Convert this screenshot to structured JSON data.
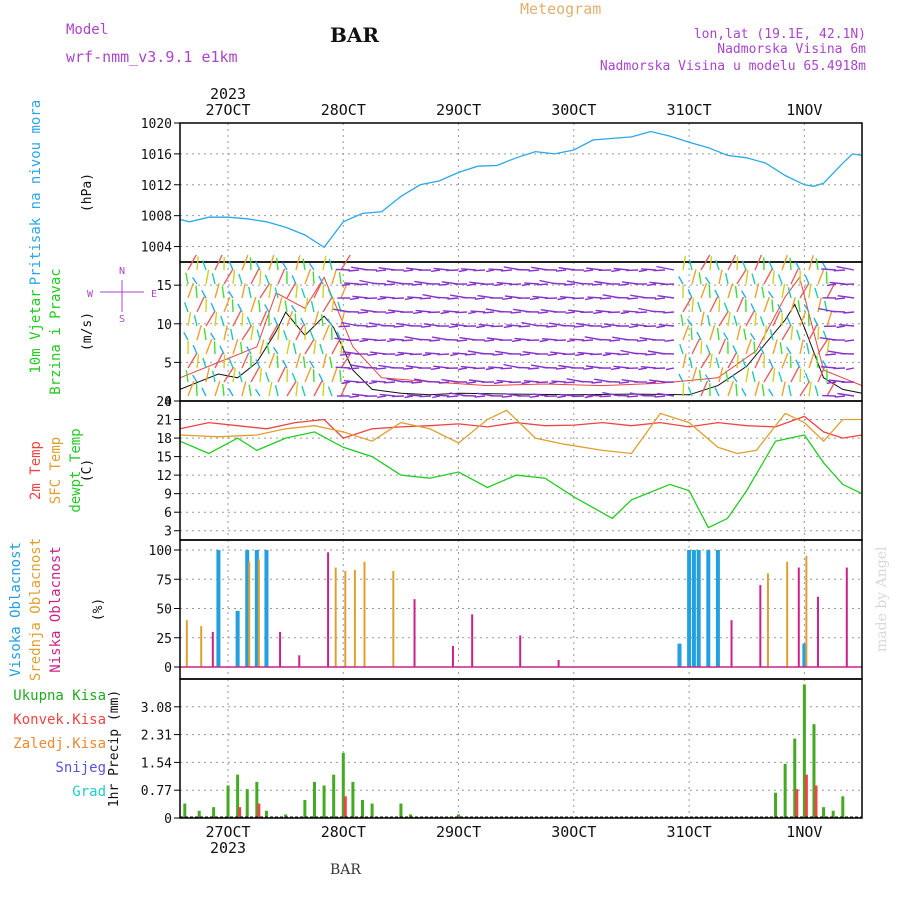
{
  "header": {
    "model_label": "Model",
    "model_name": "wrf-nmm_v3.9.1 e1km",
    "station": "BAR",
    "meteogram": "Meteogram",
    "lonlat": "lon,lat (19.1E, 42.1N)",
    "elevation": "Nadmorska Visina 6m",
    "model_elevation": "Nadmorska Visina u modelu 65.4918m",
    "footer": "BAR",
    "watermark": "made by Angel"
  },
  "colors": {
    "pressure": "#2aa8e8",
    "temp2m": "#ee4444",
    "sfc_temp": "#e0a030",
    "dewpt": "#22cc22",
    "high_cloud": "#22a0e0",
    "mid_cloud": "#e0a030",
    "low_cloud": "#cc2288",
    "total_precip": "#44aa22",
    "conv_precip": "#ee4444",
    "frozen": "#ee8833",
    "snow": "#5555dd",
    "hail": "#22cccc",
    "grid": "#888888",
    "wind_arrow_low": "#8833cc",
    "watermark": "#d8d8d8"
  },
  "chart_data": [
    {
      "type": "line",
      "panel": "pressure",
      "x_range": [
        "2023-10-26T14:00",
        "2023-11-01T12:00"
      ],
      "x_ticks": [
        {
          "label": "27OCT",
          "t": "2023-10-27T00:00"
        },
        {
          "label": "28OCT",
          "t": "2023-10-28T00:00"
        },
        {
          "label": "29OCT",
          "t": "2023-10-29T00:00"
        },
        {
          "label": "30OCT",
          "t": "2023-10-30T00:00"
        },
        {
          "label": "31OCT",
          "t": "2023-10-31T00:00"
        },
        {
          "label": "1NOV",
          "t": "2023-11-01T00:00"
        }
      ],
      "year_label": "2023",
      "ylabel": "(hPa)",
      "side_labels": [
        {
          "text": "Pritisak na nivou mora",
          "color": "#2aa8e8"
        }
      ],
      "ylim": [
        1002,
        1020
      ],
      "yticks": [
        1004,
        1008,
        1012,
        1016,
        1020
      ],
      "grid": true,
      "series": [
        {
          "color": "#2aa8e8",
          "x": [
            "2023-10-26T14:00",
            "2023-10-26T16:00",
            "2023-10-26T20:00",
            "2023-10-27T00:00",
            "2023-10-27T04:00",
            "2023-10-27T08:00",
            "2023-10-27T12:00",
            "2023-10-27T16:00",
            "2023-10-27T20:00",
            "2023-10-28T00:00",
            "2023-10-28T04:00",
            "2023-10-28T08:00",
            "2023-10-28T12:00",
            "2023-10-28T16:00",
            "2023-10-28T20:00",
            "2023-10-29T00:00",
            "2023-10-29T04:00",
            "2023-10-29T08:00",
            "2023-10-29T12:00",
            "2023-10-29T16:00",
            "2023-10-29T20:00",
            "2023-10-30T00:00",
            "2023-10-30T04:00",
            "2023-10-30T08:00",
            "2023-10-30T12:00",
            "2023-10-30T16:00",
            "2023-10-30T20:00",
            "2023-10-31T00:00",
            "2023-10-31T04:00",
            "2023-10-31T08:00",
            "2023-10-31T12:00",
            "2023-10-31T16:00",
            "2023-10-31T20:00",
            "2023-11-01T00:00",
            "2023-11-01T02:00",
            "2023-11-01T04:00",
            "2023-11-01T06:00",
            "2023-11-01T08:00",
            "2023-11-01T10:00",
            "2023-11-01T12:00"
          ],
          "y": [
            1007.5,
            1007.2,
            1007.8,
            1007.8,
            1007.6,
            1007.2,
            1006.5,
            1005.5,
            1003.9,
            1007.2,
            1008.3,
            1008.5,
            1010.5,
            1012.0,
            1012.5,
            1013.6,
            1014.4,
            1014.5,
            1015.5,
            1016.3,
            1016.0,
            1016.5,
            1017.8,
            1018.0,
            1018.2,
            1018.9,
            1018.3,
            1017.5,
            1016.8,
            1015.8,
            1015.5,
            1014.8,
            1013.2,
            1012.0,
            1011.8,
            1012.2,
            1013.5,
            1014.8,
            1016.0,
            1015.8
          ]
        }
      ]
    },
    {
      "type": "line",
      "panel": "wind",
      "ylabel": "(m/s)",
      "side_labels": [
        {
          "text": "10m Vjetar",
          "color": "#22cc22"
        },
        {
          "text": "Brzina i Pravac",
          "color": "#22cc22"
        }
      ],
      "compass": {
        "n": "N",
        "s": "S",
        "e": "E",
        "w": "W"
      },
      "ylim": [
        0,
        18
      ],
      "yticks": [
        0,
        5,
        10,
        15
      ],
      "grid": true,
      "series": [
        {
          "name": "speed",
          "color": "#111111",
          "x": [
            "2023-10-26T14:00",
            "2023-10-26T18:00",
            "2023-10-26T22:00",
            "2023-10-27T02:00",
            "2023-10-27T06:00",
            "2023-10-27T10:00",
            "2023-10-27T12:00",
            "2023-10-27T16:00",
            "2023-10-27T20:00",
            "2023-10-27T22:00",
            "2023-10-28T02:00",
            "2023-10-28T06:00",
            "2023-10-28T12:00",
            "2023-10-28T18:00",
            "2023-10-29T00:00",
            "2023-10-29T12:00",
            "2023-10-30T00:00",
            "2023-10-30T12:00",
            "2023-10-31T00:00",
            "2023-10-31T06:00",
            "2023-10-31T12:00",
            "2023-10-31T16:00",
            "2023-10-31T20:00",
            "2023-10-31T22:00",
            "2023-11-01T00:00",
            "2023-11-01T04:00",
            "2023-11-01T08:00",
            "2023-11-01T12:00"
          ],
          "y": [
            1.5,
            2.5,
            3.5,
            3.0,
            5.0,
            9.0,
            11.5,
            8.5,
            11.0,
            9.5,
            4.0,
            1.5,
            1.0,
            0.8,
            1.0,
            0.9,
            0.8,
            0.9,
            0.8,
            2.0,
            4.5,
            7.5,
            10.5,
            12.5,
            9.5,
            3.0,
            1.5,
            1.0
          ]
        },
        {
          "name": "gust",
          "color": "#ee4444",
          "x": [
            "2023-10-26T14:00",
            "2023-10-26T22:00",
            "2023-10-27T06:00",
            "2023-10-27T10:00",
            "2023-10-27T16:00",
            "2023-10-27T20:00",
            "2023-10-28T02:00",
            "2023-10-28T08:00",
            "2023-10-28T18:00",
            "2023-10-29T06:00",
            "2023-10-29T18:00",
            "2023-10-30T06:00",
            "2023-10-30T18:00",
            "2023-10-31T06:00",
            "2023-10-31T14:00",
            "2023-10-31T20:00",
            "2023-10-31T23:00",
            "2023-11-01T04:00",
            "2023-11-01T12:00"
          ],
          "y": [
            3,
            5,
            7,
            14,
            12,
            16,
            7,
            3,
            2.5,
            2.0,
            2.2,
            2.0,
            2.3,
            3.0,
            6.5,
            13.5,
            16,
            4,
            2
          ]
        }
      ]
    },
    {
      "type": "line",
      "panel": "temperature",
      "ylabel": "(C)",
      "side_labels": [
        {
          "text": "2m Temp",
          "color": "#ee4444"
        },
        {
          "text": "SFC Temp",
          "color": "#e0a030"
        },
        {
          "text": "dewpt Temp",
          "color": "#22cc22"
        }
      ],
      "ylim": [
        1.5,
        24
      ],
      "yticks": [
        3,
        6,
        9,
        12,
        15,
        18,
        21,
        24
      ],
      "grid": true,
      "series": [
        {
          "color": "#ee4444",
          "x": [
            "2023-10-26T14:00",
            "2023-10-26T20:00",
            "2023-10-27T02:00",
            "2023-10-27T08:00",
            "2023-10-27T14:00",
            "2023-10-27T20:00",
            "2023-10-28T00:00",
            "2023-10-28T06:00",
            "2023-10-28T12:00",
            "2023-10-28T18:00",
            "2023-10-29T00:00",
            "2023-10-29T06:00",
            "2023-10-29T12:00",
            "2023-10-29T18:00",
            "2023-10-30T00:00",
            "2023-10-30T06:00",
            "2023-10-30T12:00",
            "2023-10-30T18:00",
            "2023-10-31T00:00",
            "2023-10-31T06:00",
            "2023-10-31T12:00",
            "2023-10-31T18:00",
            "2023-11-01T00:00",
            "2023-11-01T04:00",
            "2023-11-01T08:00",
            "2023-11-01T12:00"
          ],
          "y": [
            19.5,
            20.5,
            20.0,
            19.5,
            20.5,
            21.0,
            18.0,
            19.5,
            19.8,
            20.0,
            20.3,
            19.8,
            20.5,
            20.0,
            20.1,
            20.5,
            20.0,
            20.5,
            19.8,
            20.5,
            20.0,
            19.8,
            21.5,
            19.0,
            18.0,
            18.5
          ]
        },
        {
          "color": "#e0a030",
          "x": [
            "2023-10-26T14:00",
            "2023-10-26T22:00",
            "2023-10-27T06:00",
            "2023-10-27T12:00",
            "2023-10-27T18:00",
            "2023-10-28T00:00",
            "2023-10-28T06:00",
            "2023-10-28T12:00",
            "2023-10-28T18:00",
            "2023-10-29T00:00",
            "2023-10-29T06:00",
            "2023-10-29T10:00",
            "2023-10-29T16:00",
            "2023-10-29T22:00",
            "2023-10-30T06:00",
            "2023-10-30T12:00",
            "2023-10-30T18:00",
            "2023-10-31T00:00",
            "2023-10-31T06:00",
            "2023-10-31T10:00",
            "2023-10-31T14:00",
            "2023-10-31T20:00",
            "2023-11-01T00:00",
            "2023-11-01T04:00",
            "2023-11-01T08:00",
            "2023-11-01T12:00"
          ],
          "y": [
            18.5,
            18.2,
            18.5,
            19.5,
            20.0,
            19.0,
            17.5,
            20.5,
            19.5,
            17.2,
            21.0,
            22.5,
            18.0,
            17.0,
            16.0,
            15.5,
            22.0,
            20.5,
            16.5,
            15.5,
            16.0,
            22.0,
            20.5,
            17.5,
            21.0,
            21.0
          ]
        },
        {
          "color": "#22cc22",
          "x": [
            "2023-10-26T14:00",
            "2023-10-26T20:00",
            "2023-10-27T02:00",
            "2023-10-27T06:00",
            "2023-10-27T12:00",
            "2023-10-27T18:00",
            "2023-10-28T00:00",
            "2023-10-28T06:00",
            "2023-10-28T12:00",
            "2023-10-28T18:00",
            "2023-10-29T00:00",
            "2023-10-29T06:00",
            "2023-10-29T12:00",
            "2023-10-29T18:00",
            "2023-10-30T00:00",
            "2023-10-30T08:00",
            "2023-10-30T12:00",
            "2023-10-30T20:00",
            "2023-10-31T00:00",
            "2023-10-31T04:00",
            "2023-10-31T08:00",
            "2023-10-31T12:00",
            "2023-10-31T18:00",
            "2023-11-01T00:00",
            "2023-11-01T04:00",
            "2023-11-01T08:00",
            "2023-11-01T12:00"
          ],
          "y": [
            17.5,
            15.5,
            18.0,
            16.0,
            18.0,
            19.0,
            16.5,
            15.0,
            12.0,
            11.5,
            12.5,
            10.0,
            12.0,
            11.5,
            8.5,
            5.0,
            8.0,
            10.5,
            9.5,
            3.5,
            5.0,
            9.5,
            17.5,
            18.5,
            14.0,
            10.5,
            9.0
          ]
        }
      ]
    },
    {
      "type": "bar",
      "panel": "cloud",
      "ylabel": "(%)",
      "side_labels": [
        {
          "text": "Visoka Oblacnost",
          "color": "#22a0e0"
        },
        {
          "text": "Srednja Oblacnost",
          "color": "#e0a030"
        },
        {
          "text": "Niska Oblacnost",
          "color": "#cc2288"
        }
      ],
      "ylim": [
        0,
        100
      ],
      "yticks": [
        0,
        25,
        50,
        75,
        100
      ],
      "grid": true,
      "series": [
        {
          "name": "high",
          "color": "#22a0e0",
          "x": [
            "2023-10-26T22:00",
            "2023-10-27T02:00",
            "2023-10-27T04:00",
            "2023-10-27T06:00",
            "2023-10-27T08:00",
            "2023-10-30T22:00",
            "2023-10-31T00:00",
            "2023-10-31T01:00",
            "2023-10-31T02:00",
            "2023-10-31T04:00",
            "2023-10-31T06:00",
            "2023-11-01T00:00"
          ],
          "y": [
            100,
            48,
            100,
            100,
            100,
            20,
            100,
            100,
            100,
            100,
            100,
            20
          ]
        },
        {
          "name": "mid",
          "color": "#e0a030",
          "x": [
            "2023-10-26T15:00",
            "2023-10-26T18:00",
            "2023-10-27T04:00",
            "2023-10-27T06:00",
            "2023-10-27T22:00",
            "2023-10-28T00:00",
            "2023-10-28T02:00",
            "2023-10-28T04:00",
            "2023-10-28T10:00",
            "2023-10-31T16:00",
            "2023-10-31T20:00",
            "2023-11-01T00:00"
          ],
          "y": [
            40,
            35,
            90,
            92,
            85,
            82,
            83,
            90,
            82,
            80,
            90,
            95
          ]
        },
        {
          "name": "low",
          "color": "#cc2288",
          "x": [
            "2023-10-26T20:00",
            "2023-10-27T10:00",
            "2023-10-27T14:00",
            "2023-10-27T20:00",
            "2023-10-28T14:00",
            "2023-10-28T22:00",
            "2023-10-29T02:00",
            "2023-10-29T12:00",
            "2023-10-29T20:00",
            "2023-10-31T08:00",
            "2023-10-31T14:00",
            "2023-10-31T22:00",
            "2023-11-01T02:00",
            "2023-11-01T08:00"
          ],
          "y": [
            30,
            30,
            10,
            98,
            58,
            18,
            45,
            27,
            6,
            40,
            70,
            85,
            60,
            85
          ]
        }
      ]
    },
    {
      "type": "bar",
      "panel": "precip",
      "ylabel": "1hr Precip (mm)",
      "legend": [
        {
          "text": "Ukupna Kisa",
          "color": "#22aa22"
        },
        {
          "text": "Konvek.Kisa",
          "color": "#ee4444"
        },
        {
          "text": "Zaledj.Kisa",
          "color": "#ee8833"
        },
        {
          "text": "Snijeg",
          "color": "#5555dd"
        },
        {
          "text": "Grad",
          "color": "#22cccc"
        }
      ],
      "ylim": [
        0,
        3.85
      ],
      "yticks": [
        0,
        0.77,
        1.54,
        2.31,
        3.08
      ],
      "ytick_labels": [
        "0",
        "0.77",
        "1.54",
        "2.31",
        "3.08"
      ],
      "grid": true,
      "series": [
        {
          "name": "total",
          "color": "#44aa22",
          "x": [
            "2023-10-26T15:00",
            "2023-10-26T18:00",
            "2023-10-26T21:00",
            "2023-10-27T00:00",
            "2023-10-27T02:00",
            "2023-10-27T04:00",
            "2023-10-27T06:00",
            "2023-10-27T08:00",
            "2023-10-27T12:00",
            "2023-10-27T16:00",
            "2023-10-27T18:00",
            "2023-10-27T20:00",
            "2023-10-27T22:00",
            "2023-10-28T00:00",
            "2023-10-28T02:00",
            "2023-10-28T04:00",
            "2023-10-28T06:00",
            "2023-10-28T12:00",
            "2023-10-28T14:00",
            "2023-10-29T00:00",
            "2023-10-31T18:00",
            "2023-10-31T20:00",
            "2023-10-31T22:00",
            "2023-11-01T00:00",
            "2023-11-01T02:00",
            "2023-11-01T04:00",
            "2023-11-01T06:00",
            "2023-11-01T08:00"
          ],
          "y": [
            0.4,
            0.2,
            0.3,
            0.9,
            1.2,
            0.8,
            1.0,
            0.2,
            0.1,
            0.5,
            1.0,
            0.9,
            1.2,
            1.8,
            1.0,
            0.5,
            0.4,
            0.4,
            0.1,
            0.1,
            0.7,
            1.5,
            2.2,
            3.7,
            2.6,
            0.3,
            0.2,
            0.6
          ]
        },
        {
          "name": "convective",
          "color": "#ee4444",
          "x": [
            "2023-10-27T02:00",
            "2023-10-27T06:00",
            "2023-10-28T00:00",
            "2023-10-31T22:00",
            "2023-11-01T00:00",
            "2023-11-01T02:00"
          ],
          "y": [
            0.3,
            0.4,
            0.6,
            0.8,
            1.2,
            0.9
          ]
        }
      ]
    }
  ]
}
